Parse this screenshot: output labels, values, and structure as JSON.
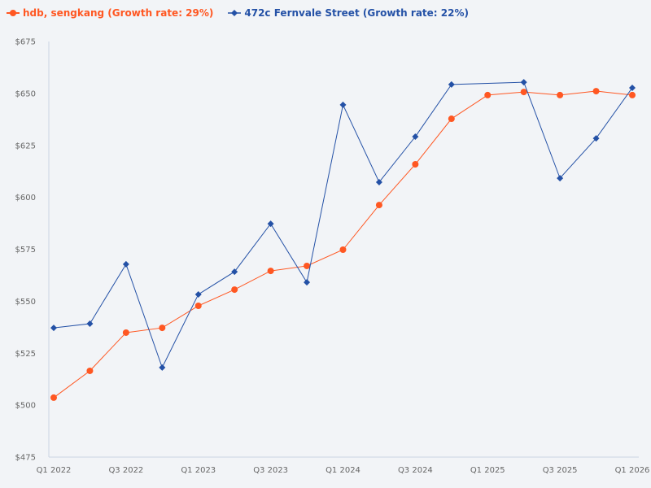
{
  "chart_data": {
    "type": "line",
    "title": "",
    "xlabel": "",
    "ylabel": "",
    "categories": [
      "Q1 2022",
      "Q2 2022",
      "Q3 2022",
      "Q4 2022",
      "Q1 2023",
      "Q2 2023",
      "Q3 2023",
      "Q4 2023",
      "Q1 2024",
      "Q2 2024",
      "Q3 2024",
      "Q4 2024",
      "Q1 2025",
      "Q2 2025",
      "Q3 2025",
      "Q4 2025",
      "Q1 2026"
    ],
    "x_tick_labels": [
      "Q1 2022",
      "Q3 2022",
      "Q1 2023",
      "Q3 2023",
      "Q1 2024",
      "Q3 2024",
      "Q1 2025",
      "Q3 2025",
      "Q1 2026"
    ],
    "ylim": [
      475,
      675
    ],
    "y_ticks": [
      475,
      500,
      525,
      550,
      575,
      600,
      625,
      650,
      675
    ],
    "y_tick_prefix": "$",
    "grid": false,
    "legend_position": "top-left",
    "series": [
      {
        "name": "hdb, sengkang (Growth rate: 29%)",
        "color": "#ff5722",
        "marker": "circle",
        "values": [
          503.6,
          516.5,
          534.9,
          537.2,
          547.8,
          555.6,
          564.6,
          567.0,
          574.8,
          596.3,
          615.9,
          637.8,
          649.2,
          650.7,
          649.2,
          651.1,
          649.2
        ]
      },
      {
        "name": "472c Fernvale Street (Growth rate: 22%)",
        "color": "#2451a6",
        "marker": "diamond",
        "values": [
          537.2,
          539.2,
          567.8,
          518.1,
          553.3,
          564.2,
          587.3,
          559.1,
          644.5,
          607.3,
          629.2,
          654.3,
          null,
          655.4,
          609.2,
          628.4,
          652.7
        ]
      }
    ]
  }
}
